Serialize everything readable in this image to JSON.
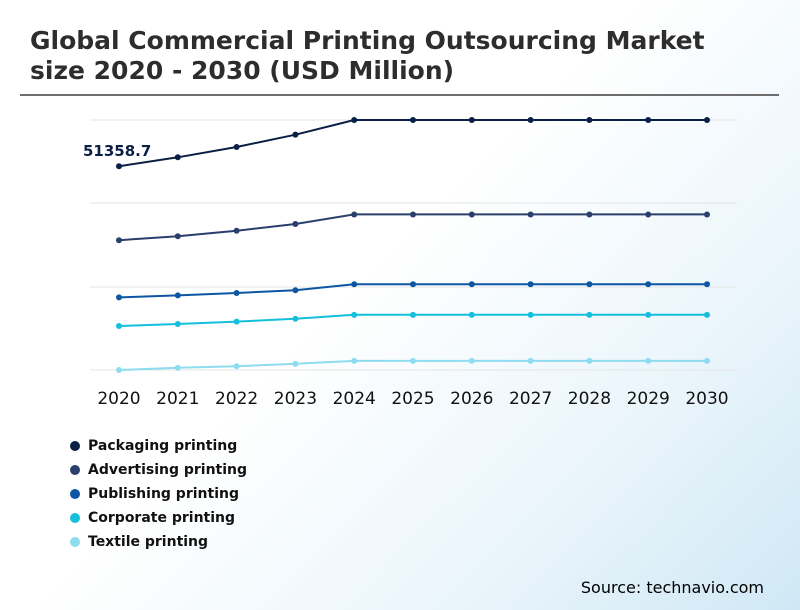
{
  "title": "Global Commercial Printing Outsourcing Market size 2020 - 2030 (USD Million)",
  "source": "Source: technavio.com",
  "chart_data": {
    "type": "line",
    "x": [
      "2020",
      "2021",
      "2022",
      "2023",
      "2024",
      "2025",
      "2026",
      "2027",
      "2028",
      "2029",
      "2030"
    ],
    "series": [
      {
        "name": "Packaging printing",
        "color": "#0b1f44",
        "values": [
          51358.7,
          53600,
          56200,
          59300,
          63000,
          63000,
          63000,
          63000,
          63000,
          63000,
          63000
        ]
      },
      {
        "name": "Advertising printing",
        "color": "#2b3f6c",
        "values": [
          32700,
          33700,
          35100,
          36800,
          39200,
          39200,
          39200,
          39200,
          39200,
          39200,
          39200
        ]
      },
      {
        "name": "Publishing printing",
        "color": "#0c56a3",
        "values": [
          18300,
          18800,
          19400,
          20100,
          21600,
          21600,
          21600,
          21600,
          21600,
          21600,
          21600
        ]
      },
      {
        "name": "Corporate printing",
        "color": "#14bfdb",
        "values": [
          11100,
          11600,
          12200,
          12900,
          13900,
          13900,
          13900,
          13900,
          13900,
          13900,
          13900
        ]
      },
      {
        "name": "Textile printing",
        "color": "#8edcf0",
        "values": [
          0,
          550,
          950,
          1550,
          2300,
          2300,
          2300,
          2300,
          2300,
          2300,
          2300
        ]
      }
    ],
    "annotations": [
      {
        "series": "Packaging printing",
        "x": "2020",
        "text": "51358.7"
      }
    ],
    "ylim": [
      0,
      63000
    ],
    "grid": true,
    "legend": "bottom-left"
  }
}
